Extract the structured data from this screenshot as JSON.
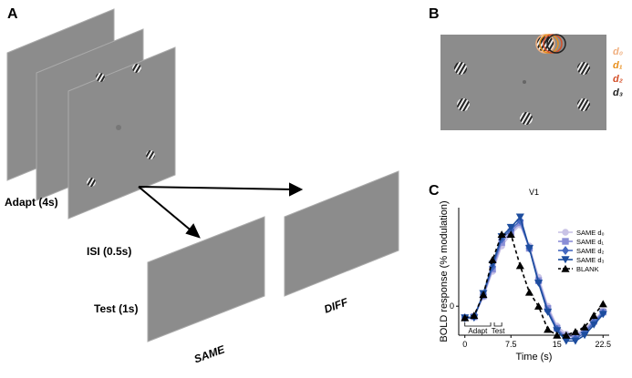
{
  "panel_a": {
    "label": "A",
    "adapt": "Adapt (4s)",
    "isi": "ISI (0.5s)",
    "test": "Test (1s)",
    "same": "SAME",
    "diff": "DIFF"
  },
  "panel_b": {
    "label": "B",
    "legend": [
      {
        "text": "d₀",
        "color": "#f0b080"
      },
      {
        "text": "d₁",
        "color": "#e8901f"
      },
      {
        "text": "d₂",
        "color": "#d4502a"
      },
      {
        "text": "d₃",
        "color": "#222222"
      }
    ]
  },
  "panel_c": {
    "label": "C"
  },
  "chart_data": {
    "type": "line",
    "title": "V1",
    "x_label": "Time (s)",
    "y_label": "BOLD response (% modulation)",
    "x": [
      0,
      1.5,
      3,
      4.5,
      6,
      7.5,
      9,
      10.5,
      12,
      13.5,
      15,
      16.5,
      18,
      19.5,
      21,
      22.5
    ],
    "xlim": [
      -1,
      23.5
    ],
    "xticks": [
      0,
      7.5,
      15,
      22.5
    ],
    "ylim": [
      -0.025,
      0.085
    ],
    "yticks": [
      0
    ],
    "annotations": [
      "Adapt",
      "Test"
    ],
    "series": [
      {
        "name": "SAME d₀",
        "color": "#c9c3e6",
        "marker": "circle",
        "dash": false,
        "values": [
          -0.01,
          -0.009,
          0.008,
          0.03,
          0.052,
          0.062,
          0.07,
          0.052,
          0.025,
          0.0,
          -0.017,
          -0.024,
          -0.024,
          -0.02,
          -0.012,
          -0.004
        ]
      },
      {
        "name": "SAME d₁",
        "color": "#8a8ed6",
        "marker": "square",
        "dash": false,
        "values": [
          -0.01,
          -0.009,
          0.009,
          0.032,
          0.055,
          0.064,
          0.072,
          0.05,
          0.022,
          -0.002,
          -0.019,
          -0.026,
          -0.026,
          -0.021,
          -0.013,
          -0.005
        ]
      },
      {
        "name": "SAME d₂",
        "color": "#4468c0",
        "marker": "diamond",
        "dash": false,
        "values": [
          -0.01,
          -0.009,
          0.01,
          0.034,
          0.058,
          0.066,
          0.074,
          0.05,
          0.021,
          -0.004,
          -0.02,
          -0.028,
          -0.028,
          -0.023,
          -0.014,
          -0.006
        ]
      },
      {
        "name": "SAME d₃",
        "color": "#1d4d9e",
        "marker": "tri-down",
        "dash": false,
        "values": [
          -0.01,
          -0.01,
          0.011,
          0.036,
          0.06,
          0.068,
          0.077,
          0.05,
          0.02,
          -0.005,
          -0.021,
          -0.03,
          -0.03,
          -0.025,
          -0.016,
          -0.007
        ]
      },
      {
        "name": "BLANK",
        "color": "#000000",
        "marker": "tri-up",
        "dash": true,
        "values": [
          -0.01,
          -0.008,
          0.01,
          0.04,
          0.062,
          0.062,
          0.035,
          0.012,
          0.0,
          -0.02,
          -0.025,
          -0.025,
          -0.022,
          -0.018,
          -0.008,
          0.002
        ]
      }
    ]
  }
}
